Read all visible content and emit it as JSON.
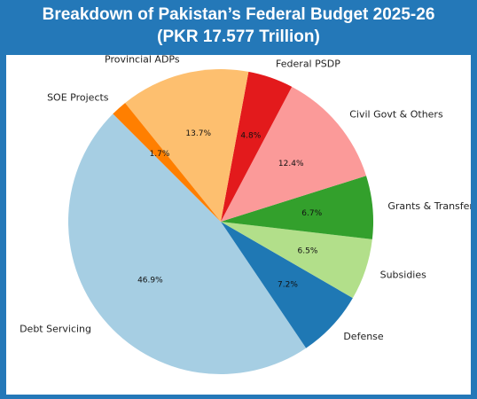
{
  "header": {
    "title_line1": "Breakdown of Pakistan’s Federal Budget 2025-26",
    "title_line2": "(PKR 17.577 Trillion)"
  },
  "chart_data": {
    "type": "pie",
    "title": "Breakdown of Pakistan’s Federal Budget 2025-26",
    "subtitle": "(PKR 17.577 Trillion)",
    "categories": [
      "Debt Servicing",
      "Defense",
      "Subsidies",
      "Grants & Transfers",
      "Civil Govt & Others",
      "Federal PSDP",
      "Provincial ADPs",
      "SOE Projects"
    ],
    "values": [
      46.9,
      7.2,
      6.5,
      6.7,
      12.4,
      4.8,
      13.7,
      1.7
    ],
    "value_labels": [
      "46.9%",
      "7.2%",
      "6.5%",
      "6.7%",
      "12.4%",
      "4.8%",
      "13.7%",
      "1.7%"
    ],
    "colors": [
      "#a6cee3",
      "#1f78b4",
      "#b2df8a",
      "#33a02c",
      "#fb9a99",
      "#e31a1c",
      "#fdbf6f",
      "#ff7f00"
    ],
    "start_angle_deg": 135,
    "direction": "counterclockwise",
    "legend": "none (labels next to slices)"
  }
}
